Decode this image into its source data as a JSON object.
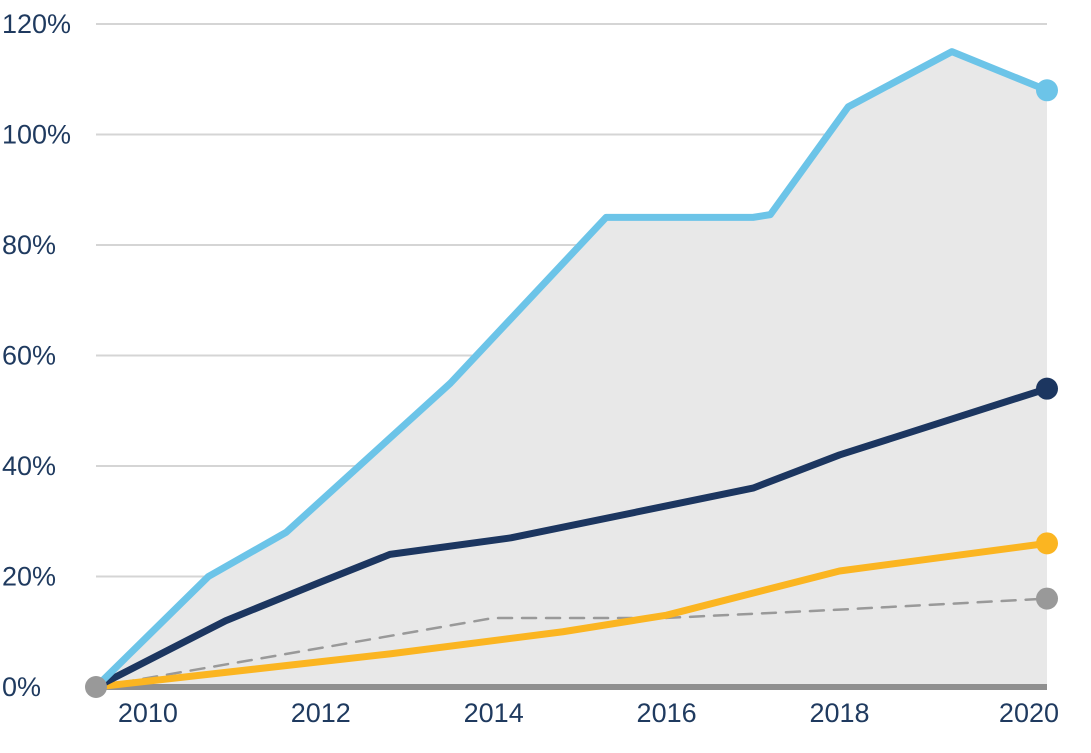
{
  "chart_data": {
    "type": "line",
    "title": "",
    "xlabel": "",
    "ylabel": "",
    "xlim": [
      2009.4,
      2020.4
    ],
    "ylim": [
      0,
      120
    ],
    "x_ticks": [
      2010,
      2012,
      2014,
      2016,
      2018,
      2020
    ],
    "x_tick_labels": [
      "2010",
      "2012",
      "2014",
      "2016",
      "2018",
      "2020"
    ],
    "y_ticks": [
      0,
      20,
      40,
      60,
      80,
      100,
      120
    ],
    "y_tick_labels": [
      "0%",
      "20%",
      "40%",
      "60%",
      "80%",
      "100%",
      "120%"
    ],
    "grid": true,
    "shaded_range": "between highest and lowest series",
    "series": [
      {
        "color": "#6cc4e8",
        "style": "solid",
        "end_marker": true,
        "points": [
          [
            2009.4,
            0
          ],
          [
            2010.7,
            20
          ],
          [
            2011.6,
            28
          ],
          [
            2013.5,
            55
          ],
          [
            2015.3,
            85
          ],
          [
            2017.0,
            85
          ],
          [
            2017.2,
            85.5
          ],
          [
            2018.1,
            105
          ],
          [
            2019.3,
            115
          ],
          [
            2020.4,
            108
          ]
        ]
      },
      {
        "color": "#1c3660",
        "style": "solid",
        "end_marker": true,
        "points": [
          [
            2009.4,
            0
          ],
          [
            2010.9,
            12
          ],
          [
            2012.0,
            19
          ],
          [
            2012.8,
            24
          ],
          [
            2014.2,
            27
          ],
          [
            2017.0,
            36
          ],
          [
            2018.0,
            42
          ],
          [
            2020.4,
            54
          ]
        ]
      },
      {
        "color": "#fbb521",
        "style": "solid",
        "end_marker": true,
        "points": [
          [
            2009.4,
            0
          ],
          [
            2012.8,
            6
          ],
          [
            2014.8,
            10
          ],
          [
            2016.0,
            13
          ],
          [
            2018.0,
            21
          ],
          [
            2020.4,
            26
          ]
        ]
      },
      {
        "color": "#999999",
        "style": "dashed",
        "end_marker": true,
        "points": [
          [
            2009.4,
            0
          ],
          [
            2014.0,
            12.5
          ],
          [
            2016.0,
            12.5
          ],
          [
            2018.0,
            14
          ],
          [
            2020.4,
            16
          ]
        ]
      }
    ],
    "colors": {
      "shading": "#e8e8e8",
      "baseline": "#8f8f8f",
      "start_point": "#999999",
      "axis_text": "#1f3a5f"
    }
  }
}
